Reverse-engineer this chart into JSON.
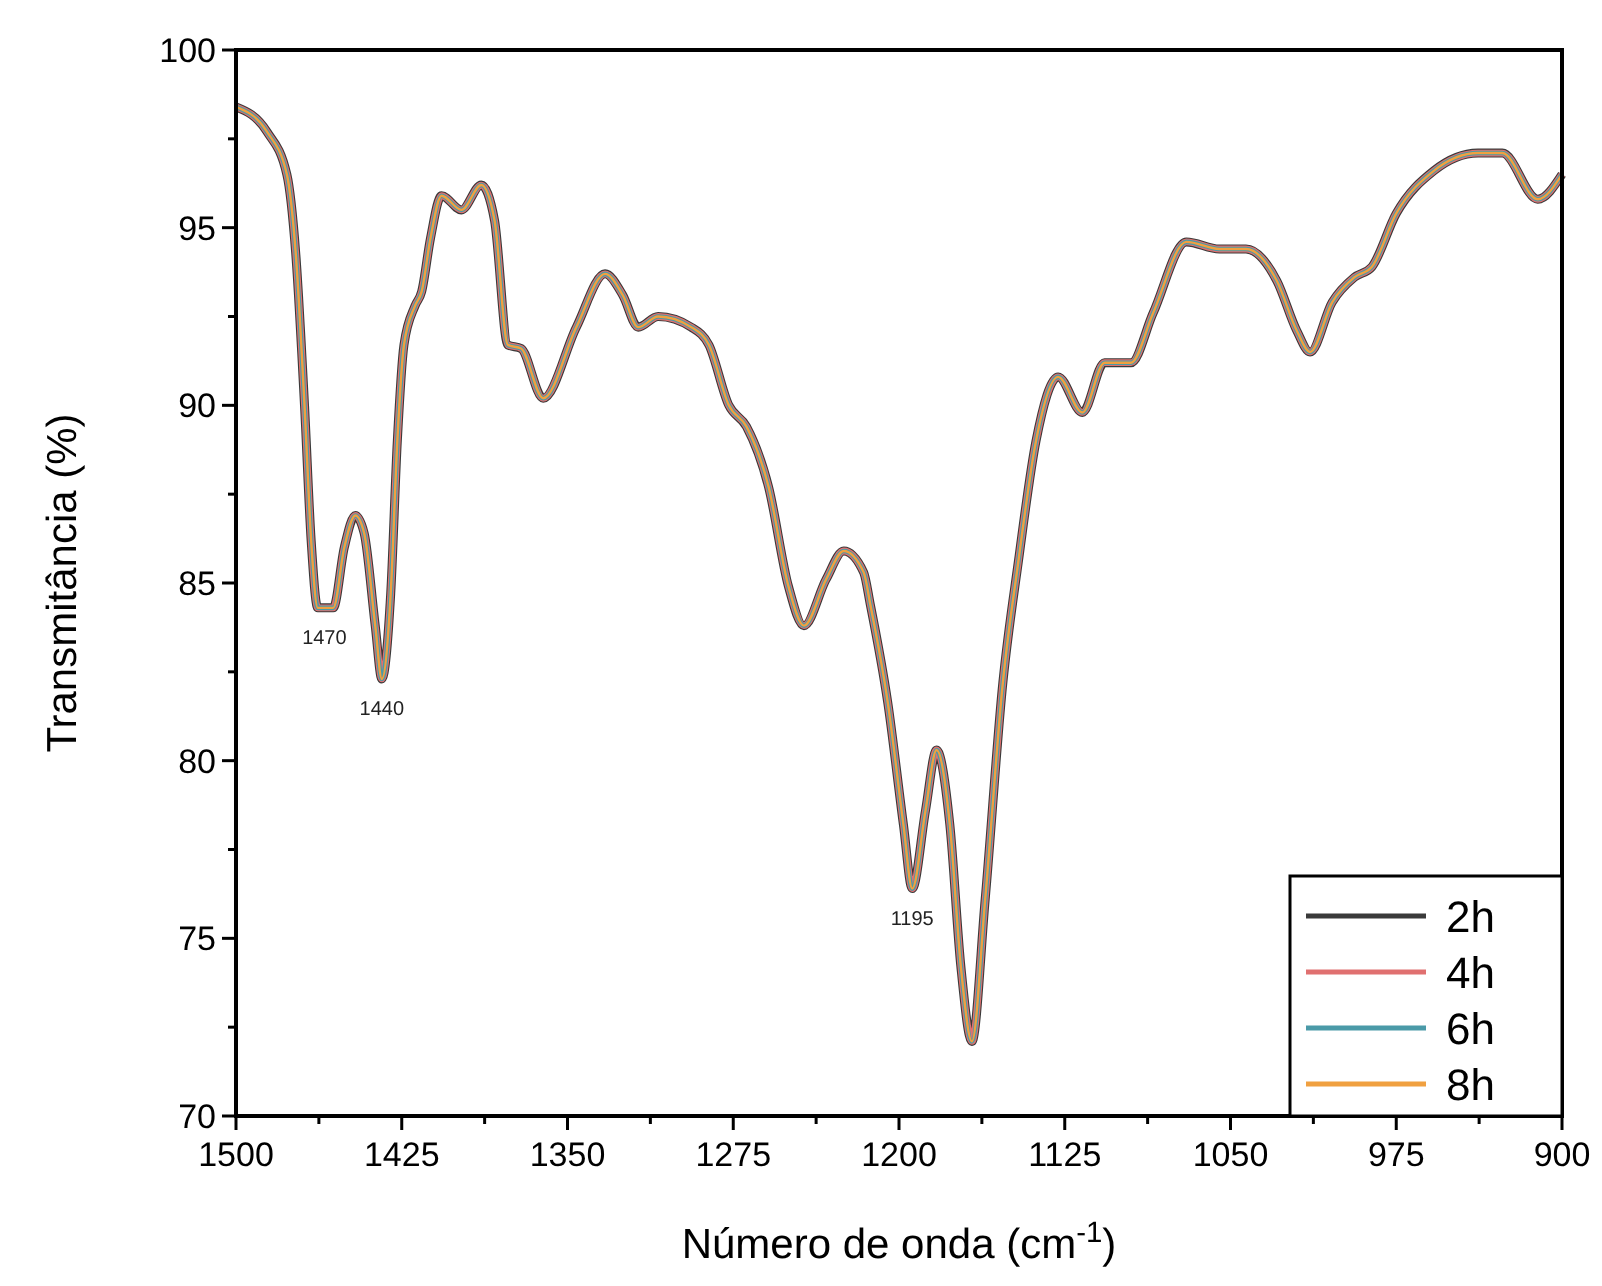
{
  "chart_data": {
    "type": "line",
    "xlabel": "Número de onda (cm$^{-1}$)",
    "ylabel": "Transmitância (%)",
    "x": [
      1500,
      1486,
      1477,
      1473,
      1469,
      1466,
      1463,
      1456,
      1451,
      1446,
      1442,
      1437,
      1434,
      1430,
      1427,
      1424,
      1419,
      1416,
      1412,
      1407,
      1398,
      1389,
      1383,
      1377,
      1371,
      1361,
      1346,
      1333,
      1325,
      1318,
      1309,
      1294,
      1286,
      1277,
      1269,
      1259,
      1250,
      1243,
      1233,
      1225,
      1216,
      1213,
      1205,
      1198,
      1194,
      1188,
      1183,
      1177,
      1172,
      1167,
      1161,
      1153,
      1146,
      1138,
      1128,
      1117,
      1107,
      1095,
      1085,
      1070,
      1055,
      1043,
      1029,
      1020,
      1014,
      1004,
      994,
      986,
      975,
      958,
      938,
      927,
      911,
      900
    ],
    "series": [
      {
        "name": "2h",
        "color": "#3a3a3a",
        "values": [
          98.4,
          97.7,
          96.5,
          94.3,
          90.0,
          86.2,
          84.3,
          84.3,
          86.0,
          86.9,
          86.4,
          83.8,
          82.3,
          84.7,
          89.0,
          91.7,
          92.8,
          93.2,
          94.7,
          95.9,
          95.5,
          96.2,
          95.2,
          91.7,
          91.6,
          90.2,
          92.2,
          93.7,
          93.1,
          92.2,
          92.5,
          92.2,
          91.7,
          90.0,
          89.4,
          87.7,
          84.9,
          83.8,
          85.1,
          85.9,
          85.3,
          84.4,
          81.6,
          78.2,
          76.4,
          78.6,
          80.3,
          78.2,
          74.2,
          72.1,
          76.1,
          82.2,
          85.6,
          89.0,
          90.8,
          89.8,
          91.2,
          91.2,
          92.6,
          94.6,
          94.4,
          94.4,
          93.5,
          92.1,
          91.5,
          92.9,
          93.6,
          93.9,
          95.4,
          96.6,
          97.1,
          97.1,
          95.8,
          96.5
        ]
      },
      {
        "name": "4h",
        "color": "#e07070",
        "values": [
          98.4,
          97.7,
          96.5,
          94.3,
          90.0,
          86.2,
          84.3,
          84.3,
          86.0,
          86.9,
          86.4,
          83.8,
          82.3,
          84.7,
          89.0,
          91.7,
          92.8,
          93.2,
          94.7,
          95.9,
          95.5,
          96.2,
          95.2,
          91.7,
          91.6,
          90.2,
          92.2,
          93.7,
          93.1,
          92.2,
          92.5,
          92.2,
          91.7,
          90.0,
          89.4,
          87.7,
          84.9,
          83.8,
          85.1,
          85.9,
          85.3,
          84.4,
          81.6,
          78.2,
          76.4,
          78.6,
          80.3,
          78.2,
          74.2,
          72.1,
          76.1,
          82.2,
          85.6,
          89.0,
          90.8,
          89.8,
          91.2,
          91.2,
          92.6,
          94.6,
          94.4,
          94.4,
          93.5,
          92.1,
          91.5,
          92.9,
          93.6,
          93.9,
          95.4,
          96.6,
          97.1,
          97.1,
          95.8,
          96.5
        ]
      },
      {
        "name": "6h",
        "color": "#4a9aa8",
        "values": [
          98.4,
          97.7,
          96.5,
          94.3,
          90.0,
          86.2,
          84.3,
          84.3,
          86.0,
          86.9,
          86.4,
          83.8,
          82.3,
          84.7,
          89.0,
          91.7,
          92.8,
          93.2,
          94.7,
          95.9,
          95.5,
          96.2,
          95.2,
          91.7,
          91.6,
          90.2,
          92.2,
          93.7,
          93.1,
          92.2,
          92.5,
          92.2,
          91.7,
          90.0,
          89.4,
          87.7,
          84.9,
          83.8,
          85.1,
          85.9,
          85.3,
          84.4,
          81.6,
          78.2,
          76.4,
          78.6,
          80.3,
          78.2,
          74.2,
          72.1,
          76.1,
          82.2,
          85.6,
          89.0,
          90.8,
          89.8,
          91.2,
          91.2,
          92.6,
          94.6,
          94.4,
          94.4,
          93.5,
          92.1,
          91.5,
          92.9,
          93.6,
          93.9,
          95.4,
          96.6,
          97.1,
          97.1,
          95.8,
          96.5
        ]
      },
      {
        "name": "8h",
        "color": "#f0a040",
        "values": [
          98.4,
          97.7,
          96.5,
          94.3,
          90.0,
          86.2,
          84.3,
          84.3,
          86.0,
          86.9,
          86.4,
          83.8,
          82.3,
          84.7,
          89.0,
          91.7,
          92.8,
          93.2,
          94.7,
          95.9,
          95.5,
          96.2,
          95.2,
          91.7,
          91.6,
          90.2,
          92.2,
          93.7,
          93.1,
          92.2,
          92.5,
          92.2,
          91.7,
          90.0,
          89.4,
          87.7,
          84.9,
          83.8,
          85.1,
          85.9,
          85.3,
          84.4,
          81.6,
          78.2,
          76.4,
          78.6,
          80.3,
          78.2,
          74.2,
          72.1,
          76.1,
          82.2,
          85.6,
          89.0,
          90.8,
          89.8,
          91.2,
          91.2,
          92.6,
          94.6,
          94.4,
          94.4,
          93.5,
          92.1,
          91.5,
          92.9,
          93.6,
          93.9,
          95.4,
          96.6,
          97.1,
          97.1,
          95.8,
          96.5
        ]
      }
    ],
    "xlim": [
      1500,
      900
    ],
    "xticks": [
      1500,
      {
        "value": 1462.5,
        "label": null
      },
      1425,
      {
        "value": 1387.5,
        "label": null
      },
      1350,
      {
        "value": 1312.5,
        "label": null
      },
      1275,
      {
        "value": 1237.5,
        "label": null
      },
      1200,
      {
        "value": 1162.5,
        "label": null
      },
      1125,
      {
        "value": 1087.5,
        "label": null
      },
      1050,
      {
        "value": 1012.5,
        "label": null
      },
      975,
      {
        "value": 937.5,
        "label": null
      },
      900
    ],
    "ylim": [
      70,
      100
    ],
    "yticks": [
      70,
      {
        "value": 72.5,
        "label": null
      },
      75,
      {
        "value": 77.5,
        "label": null
      },
      80,
      {
        "value": 82.5,
        "label": null
      },
      85,
      {
        "value": 87.5,
        "label": null
      },
      90,
      {
        "value": 92.5,
        "label": null
      },
      95,
      {
        "value": 97.5,
        "label": null
      },
      100
    ],
    "legend": "bottom right",
    "grid": false,
    "marker": "none",
    "line_style": "solid",
    "annotations": [
      {
        "text": "1470",
        "x": 1460,
        "y": 84.3
      },
      {
        "text": "1440",
        "x": 1434,
        "y": 82.3
      },
      {
        "text": "1195",
        "x": 1194,
        "y": 76.4
      }
    ]
  }
}
